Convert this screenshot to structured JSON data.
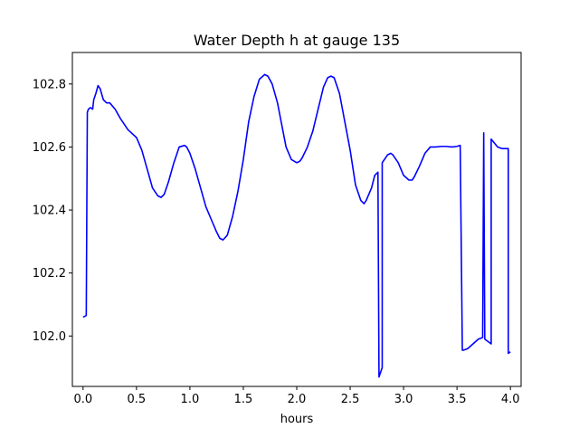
{
  "chart_data": {
    "type": "line",
    "title": "Water Depth h at gauge 135",
    "xlabel": "hours",
    "ylabel": "",
    "xlim": [
      -0.1,
      4.1
    ],
    "ylim": [
      101.84,
      102.9
    ],
    "grid": false,
    "x_ticks": [
      0.0,
      0.5,
      1.0,
      1.5,
      2.0,
      2.5,
      3.0,
      3.5,
      4.0
    ],
    "x_tick_labels": [
      "0.0",
      "0.5",
      "1.0",
      "1.5",
      "2.0",
      "2.5",
      "3.0",
      "3.5",
      "4.0"
    ],
    "y_ticks": [
      102.0,
      102.2,
      102.4,
      102.6,
      102.8
    ],
    "y_tick_labels": [
      "102.0",
      "102.2",
      "102.4",
      "102.6",
      "102.8"
    ],
    "series": [
      {
        "color": "#0000ff",
        "x": [
          0.0,
          0.03,
          0.04,
          0.05,
          0.07,
          0.09,
          0.1,
          0.12,
          0.14,
          0.16,
          0.19,
          0.22,
          0.25,
          0.3,
          0.35,
          0.42,
          0.5,
          0.55,
          0.6,
          0.65,
          0.7,
          0.73,
          0.76,
          0.8,
          0.85,
          0.9,
          0.95,
          0.97,
          1.0,
          1.05,
          1.1,
          1.15,
          1.2,
          1.25,
          1.28,
          1.31,
          1.35,
          1.4,
          1.45,
          1.5,
          1.55,
          1.6,
          1.65,
          1.7,
          1.73,
          1.77,
          1.82,
          1.86,
          1.9,
          1.95,
          2.0,
          2.03,
          2.05,
          2.1,
          2.15,
          2.2,
          2.25,
          2.29,
          2.32,
          2.35,
          2.4,
          2.45,
          2.5,
          2.55,
          2.6,
          2.63,
          2.65,
          2.7,
          2.73,
          2.76,
          2.77,
          2.8,
          2.8,
          2.85,
          2.88,
          2.9,
          2.95,
          3.0,
          3.05,
          3.08,
          3.1,
          3.15,
          3.2,
          3.25,
          3.3,
          3.35,
          3.4,
          3.45,
          3.5,
          3.53,
          3.55,
          3.56,
          3.6,
          3.65,
          3.7,
          3.74,
          3.75,
          3.76,
          3.8,
          3.82,
          3.82,
          3.88,
          3.92,
          3.97,
          3.98,
          3.98,
          4.0
        ],
        "y": [
          102.06,
          102.065,
          102.71,
          102.72,
          102.725,
          102.72,
          102.75,
          102.77,
          102.795,
          102.785,
          102.75,
          102.74,
          102.74,
          102.72,
          102.69,
          102.655,
          102.63,
          102.59,
          102.53,
          102.47,
          102.445,
          102.44,
          102.45,
          102.49,
          102.55,
          102.6,
          102.605,
          102.6,
          102.58,
          102.53,
          102.47,
          102.41,
          102.37,
          102.33,
          102.31,
          102.305,
          102.32,
          102.38,
          102.46,
          102.56,
          102.68,
          102.76,
          102.815,
          102.83,
          102.825,
          102.8,
          102.74,
          102.67,
          102.6,
          102.56,
          102.55,
          102.555,
          102.565,
          102.6,
          102.65,
          102.72,
          102.79,
          102.82,
          102.825,
          102.82,
          102.77,
          102.68,
          102.59,
          102.48,
          102.43,
          102.42,
          102.43,
          102.47,
          102.51,
          102.52,
          101.87,
          101.9,
          102.55,
          102.575,
          102.58,
          102.575,
          102.55,
          102.51,
          102.495,
          102.495,
          102.505,
          102.54,
          102.58,
          102.6,
          102.6,
          102.602,
          102.602,
          102.6,
          102.602,
          102.605,
          101.955,
          101.955,
          101.96,
          101.975,
          101.99,
          101.995,
          102.645,
          101.99,
          101.98,
          101.975,
          102.625,
          102.6,
          102.595,
          102.595,
          102.595,
          101.945,
          101.95
        ]
      }
    ]
  }
}
